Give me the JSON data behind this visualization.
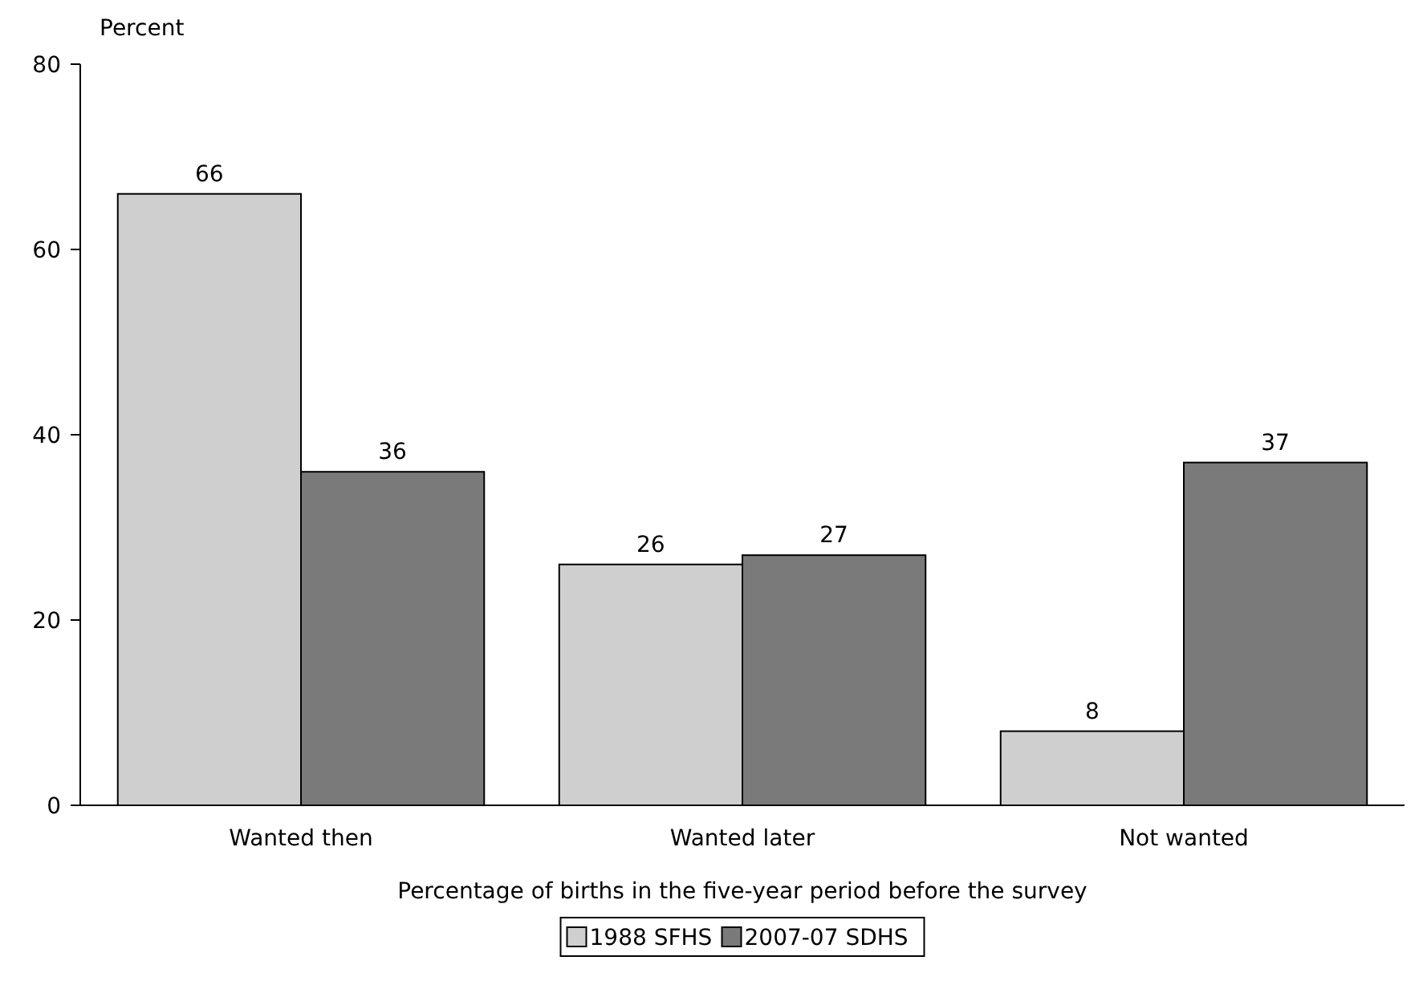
{
  "chart_data": {
    "type": "bar",
    "ylabel": "Percent",
    "xlabel": "Percentage of births in the five-year period before the survey",
    "categories": [
      "Wanted then",
      "Wanted later",
      "Not wanted"
    ],
    "series": [
      {
        "name": "1988 SFHS",
        "color": "#cfcfcf",
        "values": [
          66,
          26,
          8
        ]
      },
      {
        "name": "2007-07 SDHS",
        "color": "#7a7a7a",
        "values": [
          36,
          27,
          37
        ]
      }
    ],
    "ylim": [
      0,
      80
    ],
    "yticks": [
      0,
      20,
      40,
      60,
      80
    ],
    "data_labels": true,
    "legend": "bottom",
    "grid": false
  }
}
